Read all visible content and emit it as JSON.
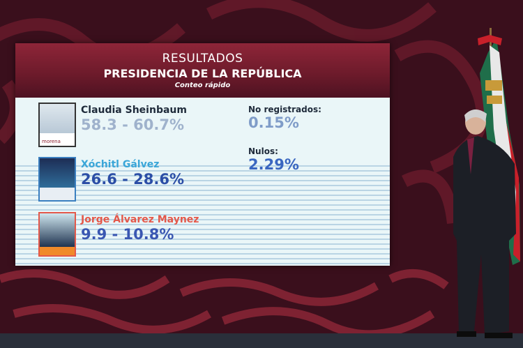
{
  "screen": {
    "title": "RESULTADOS",
    "subtitle": "PRESIDENCIA DE LA REPÚBLICA",
    "note": "Conteo rápido",
    "candidates": [
      {
        "name": "Claudia Sheinbaum",
        "range": "58.3 - 60.7%",
        "party_logo_text": "morena",
        "name_color": "#1e2a3a",
        "range_color": "#9fb2cc"
      },
      {
        "name": "Xóchitl Gálvez",
        "range": "26.6 - 28.6%",
        "name_color": "#3aa6d8",
        "range_color": "#2b4ea6"
      },
      {
        "name": "Jorge Álvarez Maynez",
        "range": "9.9 - 10.8%",
        "name_color": "#e4584a",
        "range_color": "#3a57b2"
      }
    ],
    "stats": [
      {
        "label": "No registrados:",
        "value": "0.15%"
      },
      {
        "label": "Nulos:",
        "value": "2.29%"
      }
    ]
  },
  "colors": {
    "background": "#3a0f1c",
    "pattern": "#6e1c2e",
    "header": "#7a1f30"
  }
}
